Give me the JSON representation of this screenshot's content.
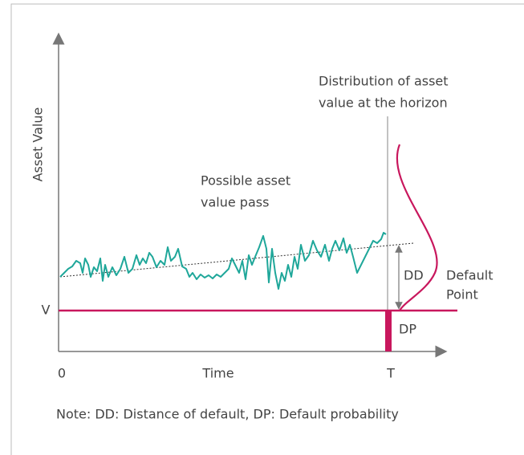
{
  "labels": {
    "y_axis": "Asset Value",
    "x_axis": "Time",
    "origin": "0",
    "horizon": "T",
    "v": "V",
    "distribution": [
      "Distribution of asset",
      "value at the horizon"
    ],
    "path": [
      "Possible asset",
      "value pass"
    ],
    "dd": "DD",
    "dp": "DP",
    "default_point": [
      "Default",
      "Point"
    ],
    "note": "Note: DD: Distance of default, DP: Default probability"
  }
}
